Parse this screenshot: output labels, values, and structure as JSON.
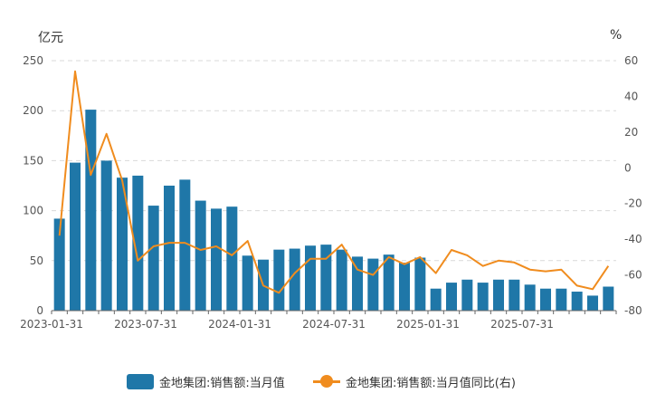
{
  "chart_data": {
    "type": "bar",
    "left_axis_unit": "亿元",
    "right_axis_unit": "%",
    "x_ticks": [
      "2023-01-31",
      "2023-07-31",
      "2024-01-31",
      "2024-07-31",
      "2025-01-31",
      "2025-07-31"
    ],
    "y_left": {
      "min": 0,
      "max": 250,
      "ticks": [
        0,
        50,
        100,
        150,
        200,
        250
      ]
    },
    "y_right": {
      "min": -80,
      "max": 60,
      "ticks": [
        -80,
        -60,
        -40,
        -20,
        0,
        20,
        40,
        60
      ]
    },
    "grid": true,
    "legend_position": "bottom",
    "series": [
      {
        "name": "金地集团:销售额:当月值",
        "type": "bar",
        "axis": "left",
        "color": "#1f77a8",
        "values": [
          92,
          148,
          201,
          150,
          133,
          135,
          105,
          125,
          131,
          110,
          102,
          104,
          55,
          51,
          61,
          62,
          65,
          66,
          61,
          54,
          52,
          56,
          48,
          53,
          22,
          28,
          31,
          28,
          31,
          31,
          26,
          22,
          22,
          19,
          15,
          24
        ]
      },
      {
        "name": "金地集团:销售额:当月值同比(右)",
        "type": "line",
        "axis": "right",
        "color": "#f08c1e",
        "values": [
          -38,
          54,
          -4,
          19,
          -7,
          -52,
          -44,
          -42,
          -42,
          -46,
          -44,
          -49,
          -41,
          -66,
          -70,
          -59,
          -51,
          -51,
          -43,
          -57,
          -60,
          -50,
          -54,
          -50,
          -59,
          -46,
          -49,
          -55,
          -52,
          -53,
          -57,
          -58,
          -57,
          -66,
          -68,
          -55
        ]
      }
    ]
  }
}
